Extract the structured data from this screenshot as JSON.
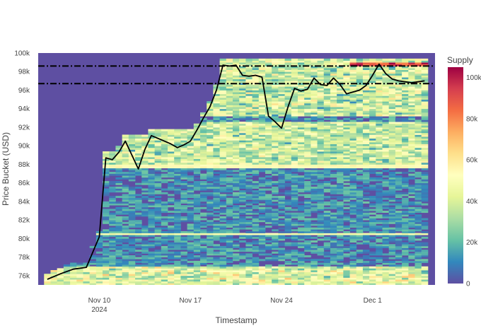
{
  "chart_data": {
    "type": "heatmap",
    "xlabel": "Timestamp",
    "ylabel": "Price Bucket (USD)",
    "colorbar_title": "Supply",
    "x_ticks": [
      {
        "label": "Nov 10",
        "sub": "2024",
        "day": 10
      },
      {
        "label": "Nov 17",
        "sub": "",
        "day": 17
      },
      {
        "label": "Nov 24",
        "sub": "",
        "day": 24
      },
      {
        "label": "Dec 1",
        "sub": "",
        "day": 31
      }
    ],
    "y_ticks": [
      {
        "label": "76k",
        "value": 76000
      },
      {
        "label": "78k",
        "value": 78000
      },
      {
        "label": "80k",
        "value": 80000
      },
      {
        "label": "82k",
        "value": 82000
      },
      {
        "label": "84k",
        "value": 84000
      },
      {
        "label": "86k",
        "value": 86000
      },
      {
        "label": "88k",
        "value": 88000
      },
      {
        "label": "90k",
        "value": 90000
      },
      {
        "label": "92k",
        "value": 92000
      },
      {
        "label": "94k",
        "value": 94000
      },
      {
        "label": "96k",
        "value": 96000
      },
      {
        "label": "98k",
        "value": 98000
      },
      {
        "label": "100k",
        "value": 100000
      }
    ],
    "colorbar_ticks": [
      {
        "label": "0",
        "value": 0
      },
      {
        "label": "20k",
        "value": 20000
      },
      {
        "label": "40k",
        "value": 40000
      },
      {
        "label": "60k",
        "value": 60000
      },
      {
        "label": "80k",
        "value": 80000
      },
      {
        "label": "100k",
        "value": 100000
      }
    ],
    "x_range_day": [
      5.3,
      35.8
    ],
    "y_range": [
      75000,
      100000
    ],
    "color_range": [
      0,
      105000
    ],
    "colorscale": "Spectral_r",
    "grid": false,
    "price_line": {
      "x_day": [
        6,
        7,
        8,
        9,
        10,
        10.5,
        11,
        11.5,
        12,
        12.5,
        13,
        13.5,
        14,
        14.5,
        15,
        15.5,
        16,
        16.5,
        17,
        17.5,
        18,
        18.5,
        19,
        19.5,
        20,
        20.5,
        21,
        21.5,
        22,
        22.5,
        23,
        23.5,
        24,
        24.5,
        25,
        25.5,
        26,
        26.5,
        27,
        27.5,
        28,
        28.5,
        29,
        29.5,
        30,
        30.5,
        31,
        31.5,
        32,
        32.5,
        33,
        33.5,
        34,
        34.5,
        35
      ],
      "y": [
        75600,
        76200,
        76700,
        76900,
        80200,
        88700,
        88500,
        89300,
        90500,
        89000,
        87500,
        89600,
        91100,
        90800,
        90500,
        90200,
        89800,
        90100,
        90500,
        91700,
        93000,
        94200,
        96000,
        98700,
        98600,
        98700,
        97600,
        97500,
        97600,
        97400,
        93200,
        92600,
        91900,
        94200,
        96200,
        95900,
        96100,
        97300,
        96600,
        96500,
        97300,
        96600,
        95600,
        95800,
        96000,
        96500,
        97600,
        98800,
        97800,
        97200,
        97000,
        96900,
        96800,
        96900,
        97000
      ],
      "color": "#000000"
    },
    "reference_lines": [
      {
        "y": 98600,
        "style": "dash-dot",
        "color": "#000000"
      },
      {
        "y": 96700,
        "style": "dash-dot",
        "color": "#000000"
      }
    ]
  }
}
